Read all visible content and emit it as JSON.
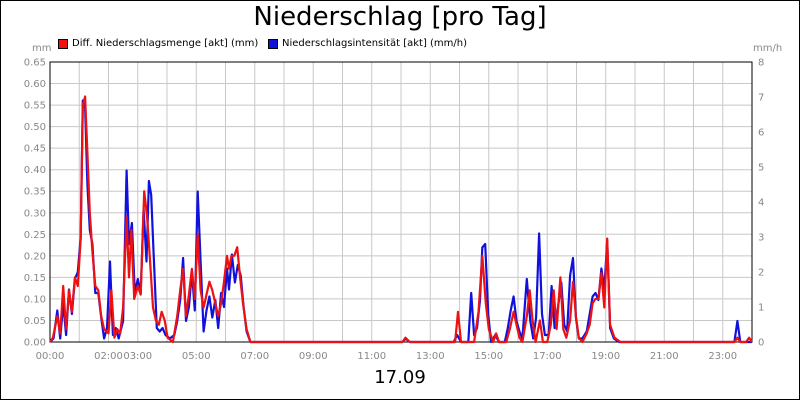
{
  "chart_data": {
    "type": "line",
    "title": "Niederschlag [pro Tag]",
    "date_label": "17.09",
    "y_unit_left": "mm",
    "y_unit_right": "mm/h",
    "x_ticks": [
      "00:00",
      "02:00",
      "03:00",
      "05:00",
      "07:00",
      "09:00",
      "11:00",
      "13:00",
      "15:00",
      "17:00",
      "19:00",
      "21:00",
      "23:00"
    ],
    "x_tick_hours": [
      0,
      2,
      3,
      5,
      7,
      9,
      11,
      13,
      15,
      17,
      19,
      21,
      23
    ],
    "xlim_hours": [
      0,
      24
    ],
    "ylim_left": [
      0,
      0.65
    ],
    "yticks_left": [
      "0.00",
      "0.05",
      "0.10",
      "0.15",
      "0.20",
      "0.25",
      "0.30",
      "0.35",
      "0.40",
      "0.45",
      "0.50",
      "0.55",
      "0.60",
      "0.65"
    ],
    "ylim_right": [
      0,
      8
    ],
    "yticks_right": [
      "0",
      "1",
      "2",
      "3",
      "4",
      "5",
      "6",
      "7",
      "8"
    ],
    "grid": true,
    "legend_position": "top",
    "series": [
      {
        "name": "Diff. Niederschlagsmenge [akt] (mm)",
        "color": "#ee1111",
        "axis": "left",
        "points": [
          [
            0.0,
            0
          ],
          [
            0.1,
            0.01
          ],
          [
            0.25,
            0.06
          ],
          [
            0.35,
            0.02
          ],
          [
            0.45,
            0.13
          ],
          [
            0.55,
            0.03
          ],
          [
            0.65,
            0.12
          ],
          [
            0.75,
            0.07
          ],
          [
            0.85,
            0.15
          ],
          [
            0.95,
            0.13
          ],
          [
            1.05,
            0.24
          ],
          [
            1.12,
            0.55
          ],
          [
            1.2,
            0.57
          ],
          [
            1.28,
            0.44
          ],
          [
            1.36,
            0.3
          ],
          [
            1.45,
            0.21
          ],
          [
            1.55,
            0.13
          ],
          [
            1.65,
            0.12
          ],
          [
            1.75,
            0.06
          ],
          [
            1.85,
            0.03
          ],
          [
            2.0,
            0.02
          ],
          [
            2.1,
            0.12
          ],
          [
            2.2,
            0.01
          ],
          [
            2.3,
            0.03
          ],
          [
            2.4,
            0.02
          ],
          [
            2.5,
            0.08
          ],
          [
            2.62,
            0.29
          ],
          [
            2.7,
            0.15
          ],
          [
            2.78,
            0.26
          ],
          [
            2.88,
            0.1
          ],
          [
            3.0,
            0.13
          ],
          [
            3.1,
            0.11
          ],
          [
            3.22,
            0.35
          ],
          [
            3.32,
            0.29
          ],
          [
            3.42,
            0.19
          ],
          [
            3.52,
            0.08
          ],
          [
            3.62,
            0.05
          ],
          [
            3.72,
            0.04
          ],
          [
            3.82,
            0.07
          ],
          [
            3.92,
            0.05
          ],
          [
            4.02,
            0.01
          ],
          [
            4.2,
            0.0
          ],
          [
            4.35,
            0.06
          ],
          [
            4.45,
            0.12
          ],
          [
            4.55,
            0.17
          ],
          [
            4.65,
            0.06
          ],
          [
            4.75,
            0.11
          ],
          [
            4.85,
            0.17
          ],
          [
            4.95,
            0.1
          ],
          [
            5.05,
            0.25
          ],
          [
            5.15,
            0.12
          ],
          [
            5.25,
            0.08
          ],
          [
            5.35,
            0.11
          ],
          [
            5.45,
            0.14
          ],
          [
            5.55,
            0.12
          ],
          [
            5.65,
            0.09
          ],
          [
            5.75,
            0.06
          ],
          [
            5.85,
            0.09
          ],
          [
            5.95,
            0.14
          ],
          [
            6.05,
            0.2
          ],
          [
            6.12,
            0.17
          ],
          [
            6.2,
            0.2
          ],
          [
            6.3,
            0.2
          ],
          [
            6.4,
            0.22
          ],
          [
            6.5,
            0.15
          ],
          [
            6.6,
            0.09
          ],
          [
            6.72,
            0.03
          ],
          [
            6.85,
            0.0
          ],
          [
            12.05,
            0.0
          ],
          [
            12.15,
            0.01
          ],
          [
            12.3,
            0.0
          ],
          [
            13.85,
            0.0
          ],
          [
            13.95,
            0.07
          ],
          [
            14.05,
            0.0
          ],
          [
            14.5,
            0.0
          ],
          [
            14.65,
            0.07
          ],
          [
            14.78,
            0.2
          ],
          [
            14.9,
            0.09
          ],
          [
            15.0,
            0.03
          ],
          [
            15.15,
            0.0
          ],
          [
            15.25,
            0.02
          ],
          [
            15.35,
            0.0
          ],
          [
            15.6,
            0.0
          ],
          [
            15.72,
            0.03
          ],
          [
            15.85,
            0.07
          ],
          [
            15.95,
            0.04
          ],
          [
            16.05,
            0.01
          ],
          [
            16.15,
            0.0
          ],
          [
            16.3,
            0.06
          ],
          [
            16.4,
            0.12
          ],
          [
            16.5,
            0.05
          ],
          [
            16.6,
            0.0
          ],
          [
            16.75,
            0.05
          ],
          [
            16.85,
            0.0
          ],
          [
            17.0,
            0.0
          ],
          [
            17.12,
            0.04
          ],
          [
            17.22,
            0.12
          ],
          [
            17.32,
            0.03
          ],
          [
            17.45,
            0.15
          ],
          [
            17.55,
            0.03
          ],
          [
            17.65,
            0.01
          ],
          [
            17.78,
            0.05
          ],
          [
            17.88,
            0.14
          ],
          [
            17.98,
            0.06
          ],
          [
            18.08,
            0.01
          ],
          [
            18.2,
            0.0
          ],
          [
            18.35,
            0.02
          ],
          [
            18.45,
            0.04
          ],
          [
            18.55,
            0.09
          ],
          [
            18.65,
            0.1
          ],
          [
            18.75,
            0.1
          ],
          [
            18.85,
            0.16
          ],
          [
            18.95,
            0.08
          ],
          [
            19.05,
            0.24
          ],
          [
            19.15,
            0.04
          ],
          [
            19.3,
            0.01
          ],
          [
            19.5,
            0.0
          ],
          [
            23.4,
            0.0
          ],
          [
            23.5,
            0.01
          ],
          [
            23.6,
            0.0
          ],
          [
            23.8,
            0.0
          ],
          [
            23.9,
            0.01
          ],
          [
            24.0,
            0.0
          ]
        ]
      },
      {
        "name": "Niederschlagsintensität [akt] (mm/h)",
        "color": "#1111dd",
        "axis": "right",
        "points": [
          [
            0.0,
            0
          ],
          [
            0.12,
            0.1
          ],
          [
            0.25,
            0.9
          ],
          [
            0.35,
            0.1
          ],
          [
            0.45,
            1.1
          ],
          [
            0.55,
            0.2
          ],
          [
            0.65,
            1.5
          ],
          [
            0.75,
            0.8
          ],
          [
            0.85,
            1.8
          ],
          [
            0.95,
            2.0
          ],
          [
            1.05,
            3.0
          ],
          [
            1.12,
            6.9
          ],
          [
            1.2,
            6.7
          ],
          [
            1.28,
            4.5
          ],
          [
            1.36,
            3.2
          ],
          [
            1.45,
            2.8
          ],
          [
            1.55,
            1.4
          ],
          [
            1.65,
            1.4
          ],
          [
            1.75,
            0.7
          ],
          [
            1.85,
            0.1
          ],
          [
            1.95,
            0.4
          ],
          [
            2.05,
            2.3
          ],
          [
            2.15,
            0.2
          ],
          [
            2.25,
            0.4
          ],
          [
            2.35,
            0.1
          ],
          [
            2.5,
            0.6
          ],
          [
            2.62,
            4.9
          ],
          [
            2.7,
            2.8
          ],
          [
            2.8,
            3.4
          ],
          [
            2.9,
            1.4
          ],
          [
            3.0,
            1.8
          ],
          [
            3.1,
            1.4
          ],
          [
            3.2,
            3.8
          ],
          [
            3.3,
            2.3
          ],
          [
            3.38,
            4.6
          ],
          [
            3.46,
            4.2
          ],
          [
            3.54,
            2.6
          ],
          [
            3.65,
            0.4
          ],
          [
            3.75,
            0.3
          ],
          [
            3.85,
            0.4
          ],
          [
            3.95,
            0.2
          ],
          [
            4.1,
            0.1
          ],
          [
            4.25,
            0.2
          ],
          [
            4.35,
            0.6
          ],
          [
            4.45,
            1.2
          ],
          [
            4.55,
            2.4
          ],
          [
            4.65,
            0.6
          ],
          [
            4.75,
            1.0
          ],
          [
            4.85,
            2.0
          ],
          [
            4.95,
            0.9
          ],
          [
            5.05,
            4.3
          ],
          [
            5.15,
            2.3
          ],
          [
            5.25,
            0.3
          ],
          [
            5.35,
            0.9
          ],
          [
            5.45,
            1.3
          ],
          [
            5.55,
            0.7
          ],
          [
            5.65,
            1.2
          ],
          [
            5.75,
            0.4
          ],
          [
            5.85,
            1.4
          ],
          [
            5.95,
            1.0
          ],
          [
            6.05,
            2.1
          ],
          [
            6.12,
            1.5
          ],
          [
            6.22,
            2.5
          ],
          [
            6.32,
            1.7
          ],
          [
            6.42,
            2.2
          ],
          [
            6.52,
            1.9
          ],
          [
            6.62,
            1.0
          ],
          [
            6.72,
            0.3
          ],
          [
            6.85,
            0.0
          ],
          [
            12.05,
            0.0
          ],
          [
            12.15,
            0.1
          ],
          [
            12.3,
            0.0
          ],
          [
            13.8,
            0.0
          ],
          [
            13.92,
            0.2
          ],
          [
            14.05,
            0.0
          ],
          [
            14.3,
            0.0
          ],
          [
            14.4,
            1.4
          ],
          [
            14.5,
            0.2
          ],
          [
            14.6,
            0.4
          ],
          [
            14.7,
            1.2
          ],
          [
            14.78,
            2.7
          ],
          [
            14.88,
            2.8
          ],
          [
            14.98,
            0.8
          ],
          [
            15.08,
            0.0
          ],
          [
            15.22,
            0.2
          ],
          [
            15.35,
            0.0
          ],
          [
            15.55,
            0.0
          ],
          [
            15.65,
            0.4
          ],
          [
            15.75,
            0.9
          ],
          [
            15.85,
            1.3
          ],
          [
            15.95,
            0.6
          ],
          [
            16.05,
            0.3
          ],
          [
            16.15,
            0.1
          ],
          [
            16.3,
            1.8
          ],
          [
            16.42,
            0.6
          ],
          [
            16.52,
            0.1
          ],
          [
            16.62,
            0.7
          ],
          [
            16.72,
            3.1
          ],
          [
            16.82,
            0.8
          ],
          [
            16.92,
            0.2
          ],
          [
            17.05,
            0.2
          ],
          [
            17.15,
            1.6
          ],
          [
            17.25,
            0.4
          ],
          [
            17.35,
            0.9
          ],
          [
            17.48,
            1.7
          ],
          [
            17.58,
            0.5
          ],
          [
            17.68,
            0.3
          ],
          [
            17.78,
            1.9
          ],
          [
            17.88,
            2.4
          ],
          [
            17.98,
            0.7
          ],
          [
            18.08,
            0.1
          ],
          [
            18.2,
            0.1
          ],
          [
            18.35,
            0.3
          ],
          [
            18.45,
            0.8
          ],
          [
            18.55,
            1.3
          ],
          [
            18.65,
            1.4
          ],
          [
            18.75,
            1.2
          ],
          [
            18.85,
            2.1
          ],
          [
            18.95,
            1.5
          ],
          [
            19.05,
            2.9
          ],
          [
            19.15,
            0.4
          ],
          [
            19.28,
            0.1
          ],
          [
            19.45,
            0.0
          ],
          [
            23.4,
            0.0
          ],
          [
            23.5,
            0.6
          ],
          [
            23.6,
            0.0
          ],
          [
            24.0,
            0.0
          ]
        ]
      }
    ]
  },
  "colors": {
    "grid": "#c8c8c8",
    "axis_labels": "#888888",
    "plot_border": "#000000"
  }
}
